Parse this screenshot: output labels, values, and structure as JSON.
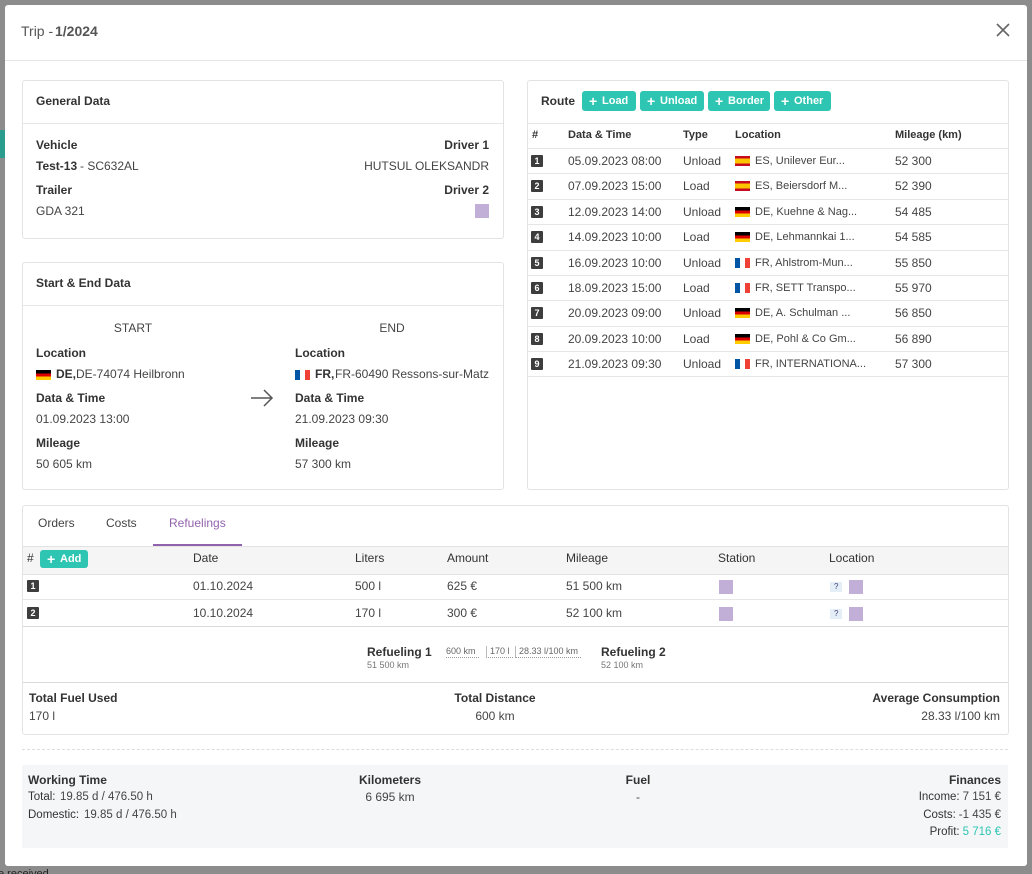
{
  "background": {
    "fragment": "e received"
  },
  "header": {
    "prefix": "Trip -",
    "number": "1/2024"
  },
  "general": {
    "title": "General Data",
    "vehicle_label": "Vehicle",
    "vehicle_name": "Test-13",
    "vehicle_plate": "- SC632AL",
    "driver1_label": "Driver 1",
    "driver1": "HUTSUL OLEKSANDR",
    "trailer_label": "Trailer",
    "trailer": "GDA 321",
    "driver2_label": "Driver 2"
  },
  "start_end": {
    "title": "Start & End Data",
    "start": {
      "heading": "START",
      "location_label": "Location",
      "flag": "de",
      "country": "DE,",
      "address": "DE-74074 Heilbronn",
      "datetime_label": "Data & Time",
      "datetime": "01.09.2023 13:00",
      "mileage_label": "Mileage",
      "mileage": "50 605 km"
    },
    "end": {
      "heading": "END",
      "location_label": "Location",
      "flag": "fr",
      "country": "FR,",
      "address": "FR-60490 Ressons-sur-Matz",
      "datetime_label": "Data & Time",
      "datetime": "21.09.2023 09:30",
      "mileage_label": "Mileage",
      "mileage": "57 300 km"
    }
  },
  "route": {
    "title": "Route",
    "buttons": [
      "Load",
      "Unload",
      "Border",
      "Other"
    ],
    "columns": [
      "#",
      "Data & Time",
      "Type",
      "Location",
      "Mileage (km)"
    ],
    "rows": [
      {
        "n": "1",
        "date": "05.09.2023 08:00",
        "type": "Unload",
        "flag": "es",
        "location": "ES, Unilever Eur...",
        "mileage": "52 300"
      },
      {
        "n": "2",
        "date": "07.09.2023 15:00",
        "type": "Load",
        "flag": "es",
        "location": "ES, Beiersdorf M...",
        "mileage": "52 390"
      },
      {
        "n": "3",
        "date": "12.09.2023 14:00",
        "type": "Unload",
        "flag": "de",
        "location": "DE, Kuehne & Nag...",
        "mileage": "54 485"
      },
      {
        "n": "4",
        "date": "14.09.2023 10:00",
        "type": "Load",
        "flag": "de",
        "location": "DE, Lehmannkai 1...",
        "mileage": "54 585"
      },
      {
        "n": "5",
        "date": "16.09.2023 10:00",
        "type": "Unload",
        "flag": "fr",
        "location": "FR, Ahlstrom-Mun...",
        "mileage": "55 850"
      },
      {
        "n": "6",
        "date": "18.09.2023 15:00",
        "type": "Load",
        "flag": "fr",
        "location": "FR, SETT Transpo...",
        "mileage": "55 970"
      },
      {
        "n": "7",
        "date": "20.09.2023 09:00",
        "type": "Unload",
        "flag": "de",
        "location": "DE, A. Schulman ...",
        "mileage": "56 850"
      },
      {
        "n": "8",
        "date": "20.09.2023 10:00",
        "type": "Load",
        "flag": "de",
        "location": "DE, Pohl & Co Gm...",
        "mileage": "56 890"
      },
      {
        "n": "9",
        "date": "21.09.2023 09:30",
        "type": "Unload",
        "flag": "fr",
        "location": "FR, INTERNATIONA...",
        "mileage": "57 300"
      }
    ]
  },
  "tabs": {
    "items": [
      "Orders",
      "Costs",
      "Refuelings"
    ],
    "active": 2
  },
  "refuelings": {
    "add": "Add",
    "columns": [
      "#",
      "Date",
      "Liters",
      "Amount",
      "Mileage",
      "Station",
      "Location"
    ],
    "rows": [
      {
        "n": "1",
        "date": "01.10.2024",
        "liters": "500 l",
        "amount": "625 €",
        "mileage": "51 500 km",
        "location_badge": "?"
      },
      {
        "n": "2",
        "date": "10.10.2024",
        "liters": "170 l",
        "amount": "300 €",
        "mileage": "52 100 km",
        "location_badge": "?"
      }
    ],
    "timeline": {
      "from": "Refueling 1",
      "from_km": "51 500 km",
      "segments": [
        "600 km",
        "170 l",
        "28.33 l/100 km"
      ],
      "to": "Refueling 2",
      "to_km": "52 100 km"
    },
    "summary": [
      {
        "label": "Total Fuel Used",
        "value": "170 l"
      },
      {
        "label": "Total Distance",
        "value": "600 km"
      },
      {
        "label": "Average Consumption",
        "value": "28.33 l/100 km"
      }
    ]
  },
  "footer": {
    "working": {
      "title": "Working Time",
      "total_label": "Total:",
      "total": "19.85 d / 476.50 h",
      "domestic_label": "Domestic:",
      "domestic": "19.85 d / 476.50 h"
    },
    "kilometers": {
      "title": "Kilometers",
      "value": "6 695 km"
    },
    "fuel": {
      "title": "Fuel",
      "value": "-"
    },
    "finances": {
      "title": "Finances",
      "income_label": "Income:",
      "income": "7 151 €",
      "costs_label": "Costs:",
      "costs": "-1 435 €",
      "profit_label": "Profit:",
      "profit": "5 716 €"
    }
  }
}
